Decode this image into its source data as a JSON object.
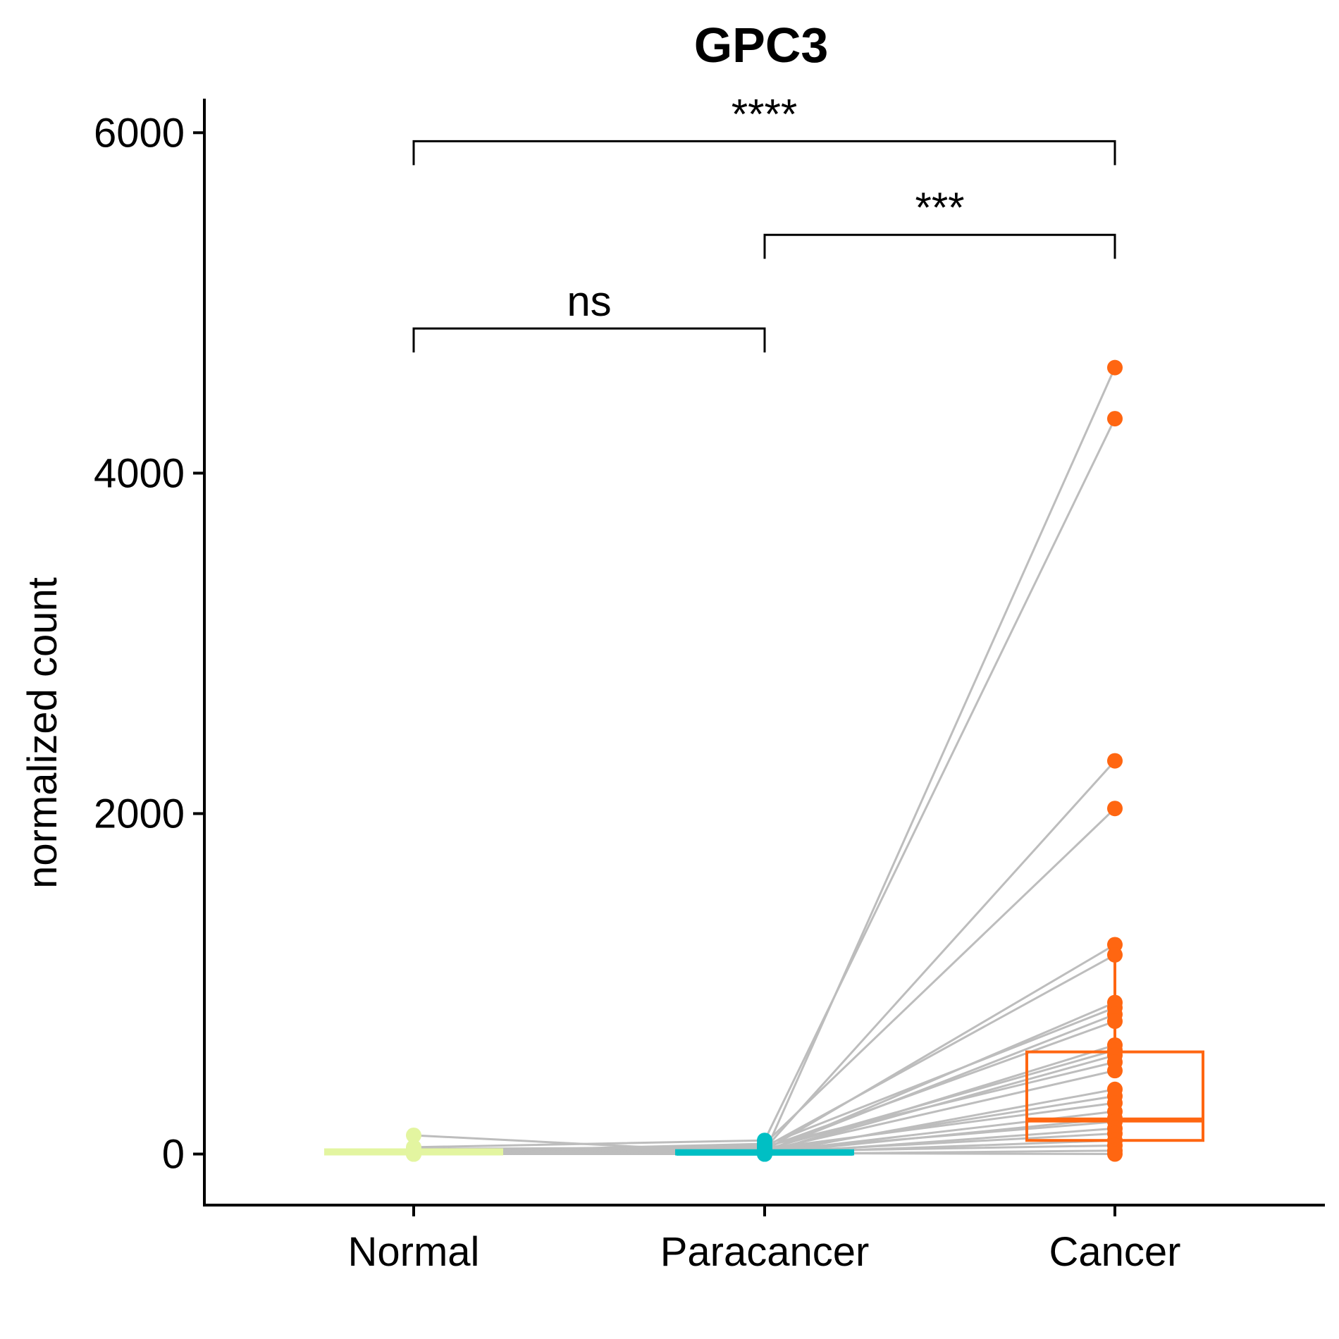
{
  "chart_data": {
    "type": "box",
    "title": "GPC3",
    "xlabel": "",
    "ylabel": "normalized count",
    "categories": [
      "Normal",
      "Paracancer",
      "Cancer"
    ],
    "ylim": [
      -300,
      6200
    ],
    "yticks": [
      0,
      2000,
      4000,
      6000
    ],
    "yticklabels": [
      "0",
      "2000",
      "4000",
      "6000"
    ],
    "grid": false,
    "legend": "none",
    "colors": {
      "Normal": "#e3f5a0",
      "Paracancer": "#00bfc4",
      "Cancer": "#ff6611",
      "pair_line": "#bdbdbd",
      "axis": "#000000"
    },
    "boxes": [
      {
        "group": "Normal",
        "q1": 0,
        "median": 10,
        "q3": 25,
        "whisker_low": 0,
        "whisker_high": 60
      },
      {
        "group": "Paracancer",
        "q1": 0,
        "median": 5,
        "q3": 20,
        "whisker_low": 0,
        "whisker_high": 45
      },
      {
        "group": "Cancer",
        "q1": 80,
        "median": 200,
        "q3": 600,
        "whisker_low": 0,
        "whisker_high": 1170
      }
    ],
    "pairs": [
      {
        "Normal": 110,
        "Paracancer": 5,
        "Cancer": 4620
      },
      {
        "Normal": 40,
        "Paracancer": 80,
        "Cancer": 4320
      },
      {
        "Normal": 20,
        "Paracancer": 30,
        "Cancer": 2310
      },
      {
        "Normal": 10,
        "Paracancer": 60,
        "Cancer": 2030
      },
      {
        "Normal": 0,
        "Paracancer": 20,
        "Cancer": 1230
      },
      {
        "Normal": 30,
        "Paracancer": 40,
        "Cancer": 1170
      },
      {
        "Normal": 15,
        "Paracancer": 10,
        "Cancer": 890
      },
      {
        "Normal": 5,
        "Paracancer": 50,
        "Cancer": 860
      },
      {
        "Normal": 25,
        "Paracancer": 15,
        "Cancer": 820
      },
      {
        "Normal": 10,
        "Paracancer": 35,
        "Cancer": 780
      },
      {
        "Normal": 0,
        "Paracancer": 5,
        "Cancer": 640
      },
      {
        "Normal": 20,
        "Paracancer": 25,
        "Cancer": 610
      },
      {
        "Normal": 5,
        "Paracancer": 10,
        "Cancer": 580
      },
      {
        "Normal": 15,
        "Paracancer": 45,
        "Cancer": 540
      },
      {
        "Normal": 0,
        "Paracancer": 20,
        "Cancer": 490
      },
      {
        "Normal": 30,
        "Paracancer": 0,
        "Cancer": 380
      },
      {
        "Normal": 10,
        "Paracancer": 15,
        "Cancer": 340
      },
      {
        "Normal": 5,
        "Paracancer": 30,
        "Cancer": 300
      },
      {
        "Normal": 20,
        "Paracancer": 10,
        "Cancer": 250
      },
      {
        "Normal": 0,
        "Paracancer": 5,
        "Cancer": 210
      },
      {
        "Normal": 10,
        "Paracancer": 20,
        "Cancer": 190
      },
      {
        "Normal": 5,
        "Paracancer": 0,
        "Cancer": 150
      },
      {
        "Normal": 15,
        "Paracancer": 10,
        "Cancer": 120
      },
      {
        "Normal": 0,
        "Paracancer": 5,
        "Cancer": 80
      },
      {
        "Normal": 5,
        "Paracancer": 15,
        "Cancer": 50
      },
      {
        "Normal": 0,
        "Paracancer": 0,
        "Cancer": 20
      },
      {
        "Normal": 10,
        "Paracancer": 5,
        "Cancer": 0
      }
    ],
    "comparisons": [
      {
        "from": "Normal",
        "to": "Cancer",
        "label": "****",
        "y": 5950
      },
      {
        "from": "Paracancer",
        "to": "Cancer",
        "label": "***",
        "y": 5400
      },
      {
        "from": "Normal",
        "to": "Paracancer",
        "label": "ns",
        "y": 4850
      }
    ]
  }
}
